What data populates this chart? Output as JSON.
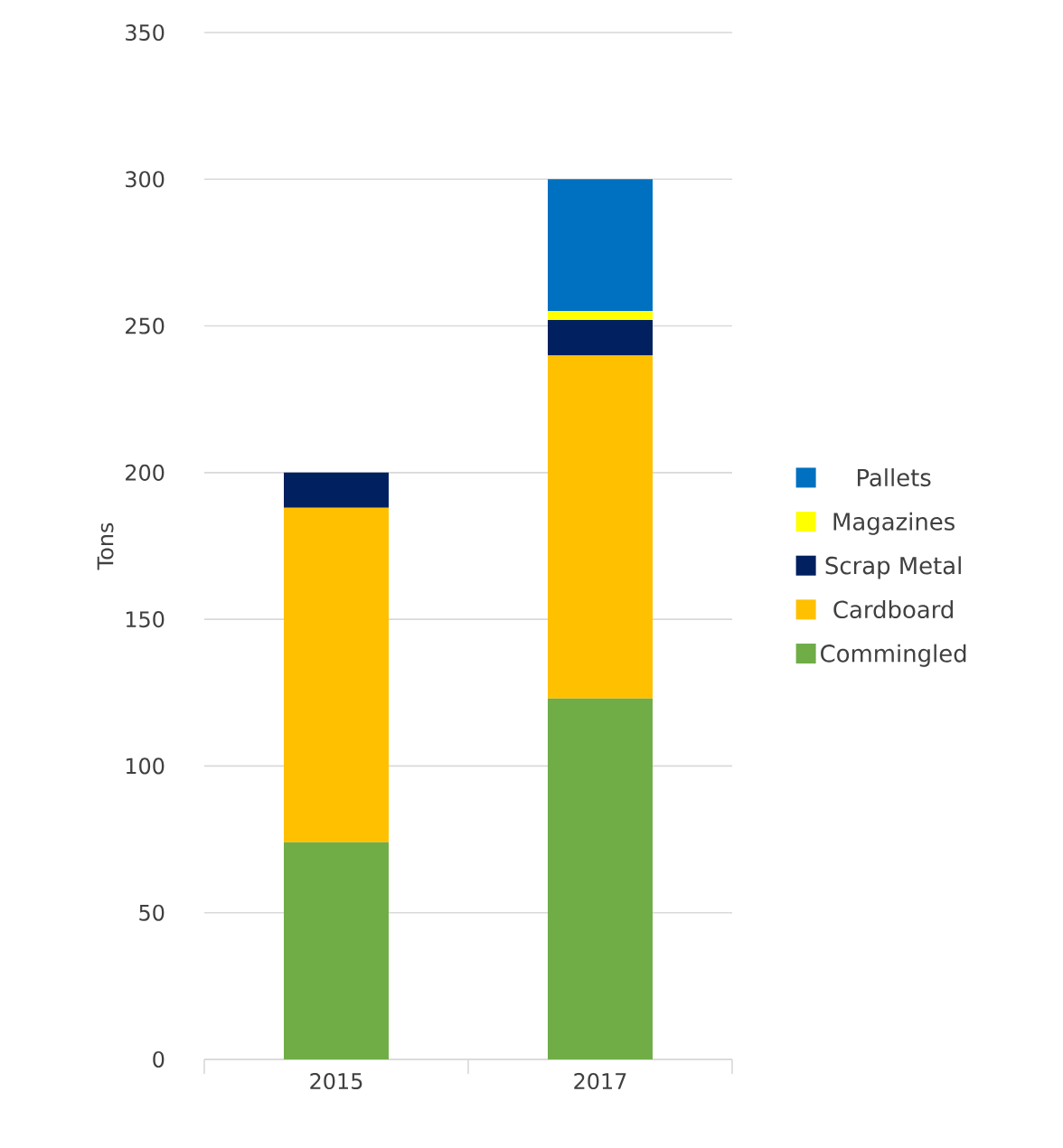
{
  "chart_data": {
    "type": "bar",
    "stacked": true,
    "ylabel": "Tons",
    "categories": [
      "2015",
      "2017"
    ],
    "series": [
      {
        "name": "Commingled",
        "color": "#70ad47",
        "values": [
          74,
          123
        ]
      },
      {
        "name": "Cardboard",
        "color": "#ffc000",
        "values": [
          114,
          117
        ]
      },
      {
        "name": "Scrap Metal",
        "color": "#002060",
        "values": [
          12,
          12
        ]
      },
      {
        "name": "Magazines",
        "color": "#ffff00",
        "values": [
          0,
          3
        ]
      },
      {
        "name": "Pallets",
        "color": "#0070c0",
        "values": [
          0,
          45
        ]
      }
    ],
    "ylim": [
      0,
      350
    ],
    "yticks": [
      0,
      50,
      100,
      150,
      200,
      250,
      300,
      350
    ],
    "grid": "y",
    "legend": "right"
  }
}
